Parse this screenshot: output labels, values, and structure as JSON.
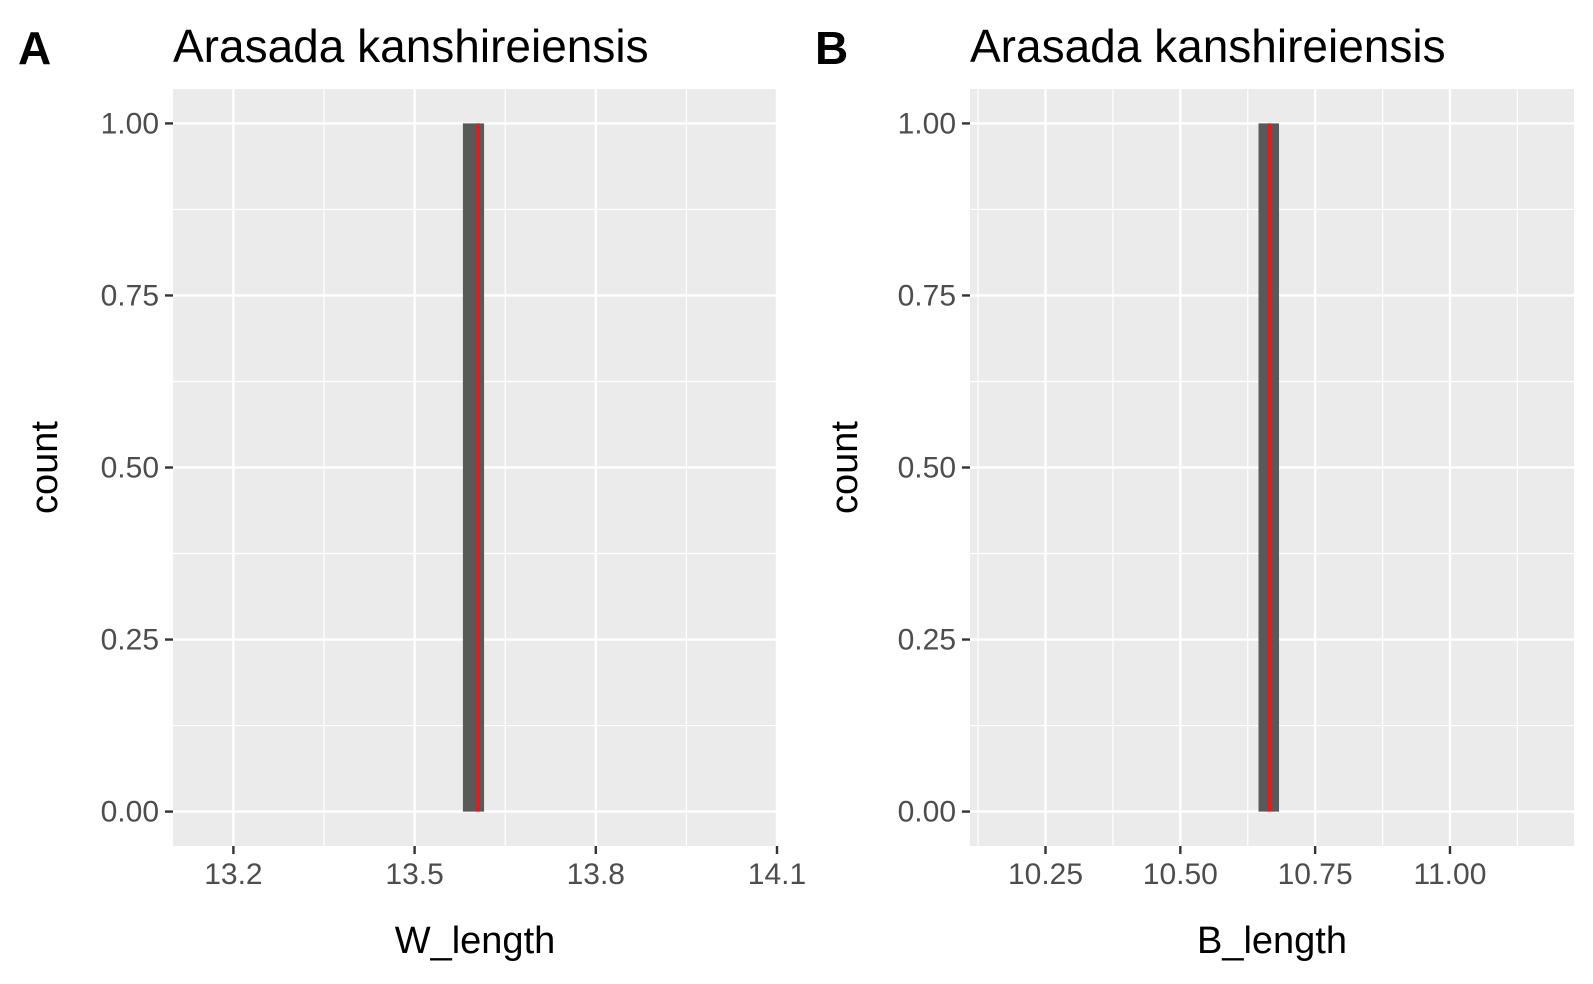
{
  "chart_data": [
    {
      "type": "bar",
      "panel_tag": "A",
      "title": "Arasada kanshireiensis",
      "xlabel": "W_length",
      "ylabel": "count",
      "xlim": [
        13.1,
        14.1
      ],
      "ylim": [
        -0.05,
        1.05
      ],
      "x_ticks": [
        13.2,
        13.5,
        13.8,
        14.1
      ],
      "x_tick_labels": [
        "13.2",
        "13.5",
        "13.8",
        "14.1"
      ],
      "y_ticks": [
        0,
        0.25,
        0.5,
        0.75,
        1
      ],
      "y_tick_labels": [
        "0.00",
        "0.25",
        "0.50",
        "0.75",
        "1.00"
      ],
      "bins": [
        {
          "xmin": 13.58,
          "xmax": 13.615,
          "count": 1
        }
      ],
      "reference_line": {
        "x": 13.605,
        "color": "#e41a1c"
      },
      "grid": true
    },
    {
      "type": "bar",
      "panel_tag": "B",
      "title": "Arasada kanshireiensis",
      "xlabel": "B_length",
      "ylabel": "count",
      "xlim": [
        10.11,
        11.23
      ],
      "ylim": [
        -0.05,
        1.05
      ],
      "x_ticks": [
        10.25,
        10.5,
        10.75,
        11.0
      ],
      "x_tick_labels": [
        "10.25",
        "10.50",
        "10.75",
        "11.00"
      ],
      "y_ticks": [
        0,
        0.25,
        0.5,
        0.75,
        1
      ],
      "y_tick_labels": [
        "0.00",
        "0.25",
        "0.50",
        "0.75",
        "1.00"
      ],
      "bins": [
        {
          "xmin": 10.645,
          "xmax": 10.683,
          "count": 1
        }
      ],
      "reference_line": {
        "x": 10.665,
        "color": "#e41a1c"
      },
      "grid": true
    }
  ],
  "colors": {
    "panel_background": "#ebebeb",
    "grid_major": "#ffffff",
    "bar_fill": "#595959",
    "reference_line": "#e41a1c",
    "tick_label": "#4d4d4d"
  }
}
